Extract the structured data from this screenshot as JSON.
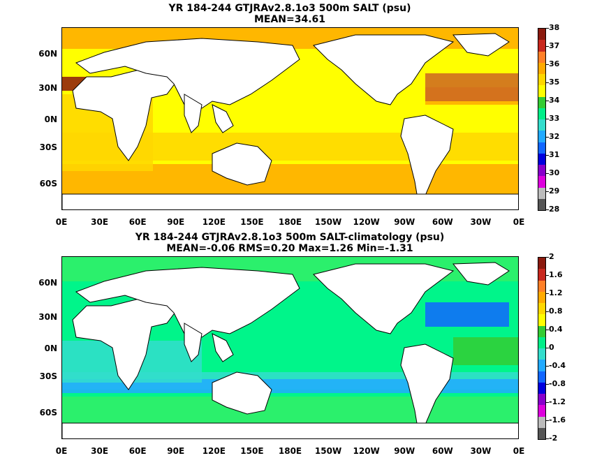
{
  "panels": [
    {
      "title_line1": "YR 184-244 GTJRAv2.8.1o3 500m SALT (psu)",
      "title_line2": "MEAN=34.61",
      "ocean_color": "#ffff00",
      "colorbar_labels": [
        "38",
        "37",
        "36",
        "35",
        "34",
        "33",
        "32",
        "31",
        "30",
        "29",
        "28"
      ],
      "colorbar_colors": [
        "#8b1a0e",
        "#c8281e",
        "#ff7f27",
        "#ffaa00",
        "#ffd700",
        "#ffff00",
        "#33cc33",
        "#00ee88",
        "#33ddcc",
        "#22aaff",
        "#1166ff",
        "#0000dd",
        "#8800cc",
        "#dd00dd",
        "#bbbbbb",
        "#555555"
      ]
    },
    {
      "title_line1": "YR 184-244 GTJRAv2.8.1o3 500m SALT-climatology (psu)",
      "title_line2": "MEAN=-0.06   RMS=0.20   Max=1.26   Min=-1.31",
      "ocean_color": "#00f58a",
      "colorbar_labels": [
        "2",
        "1.6",
        "1.2",
        "0.8",
        "0.4",
        "0",
        "-0.4",
        "-0.8",
        "-1.2",
        "-1.6",
        "-2"
      ],
      "colorbar_colors": [
        "#8b1a0e",
        "#c8281e",
        "#ff7f27",
        "#ffaa00",
        "#ffd700",
        "#ffff00",
        "#33cc33",
        "#00ee88",
        "#33ddcc",
        "#22aaff",
        "#1166ff",
        "#0000dd",
        "#8800cc",
        "#dd00dd",
        "#bbbbbb",
        "#555555"
      ]
    }
  ],
  "lat_labels": [
    "60N",
    "30N",
    "0N",
    "30S",
    "60S"
  ],
  "lon_labels": [
    "0E",
    "30E",
    "60E",
    "90E",
    "120E",
    "150E",
    "180E",
    "150W",
    "120W",
    "90W",
    "60W",
    "30W",
    "0E"
  ]
}
